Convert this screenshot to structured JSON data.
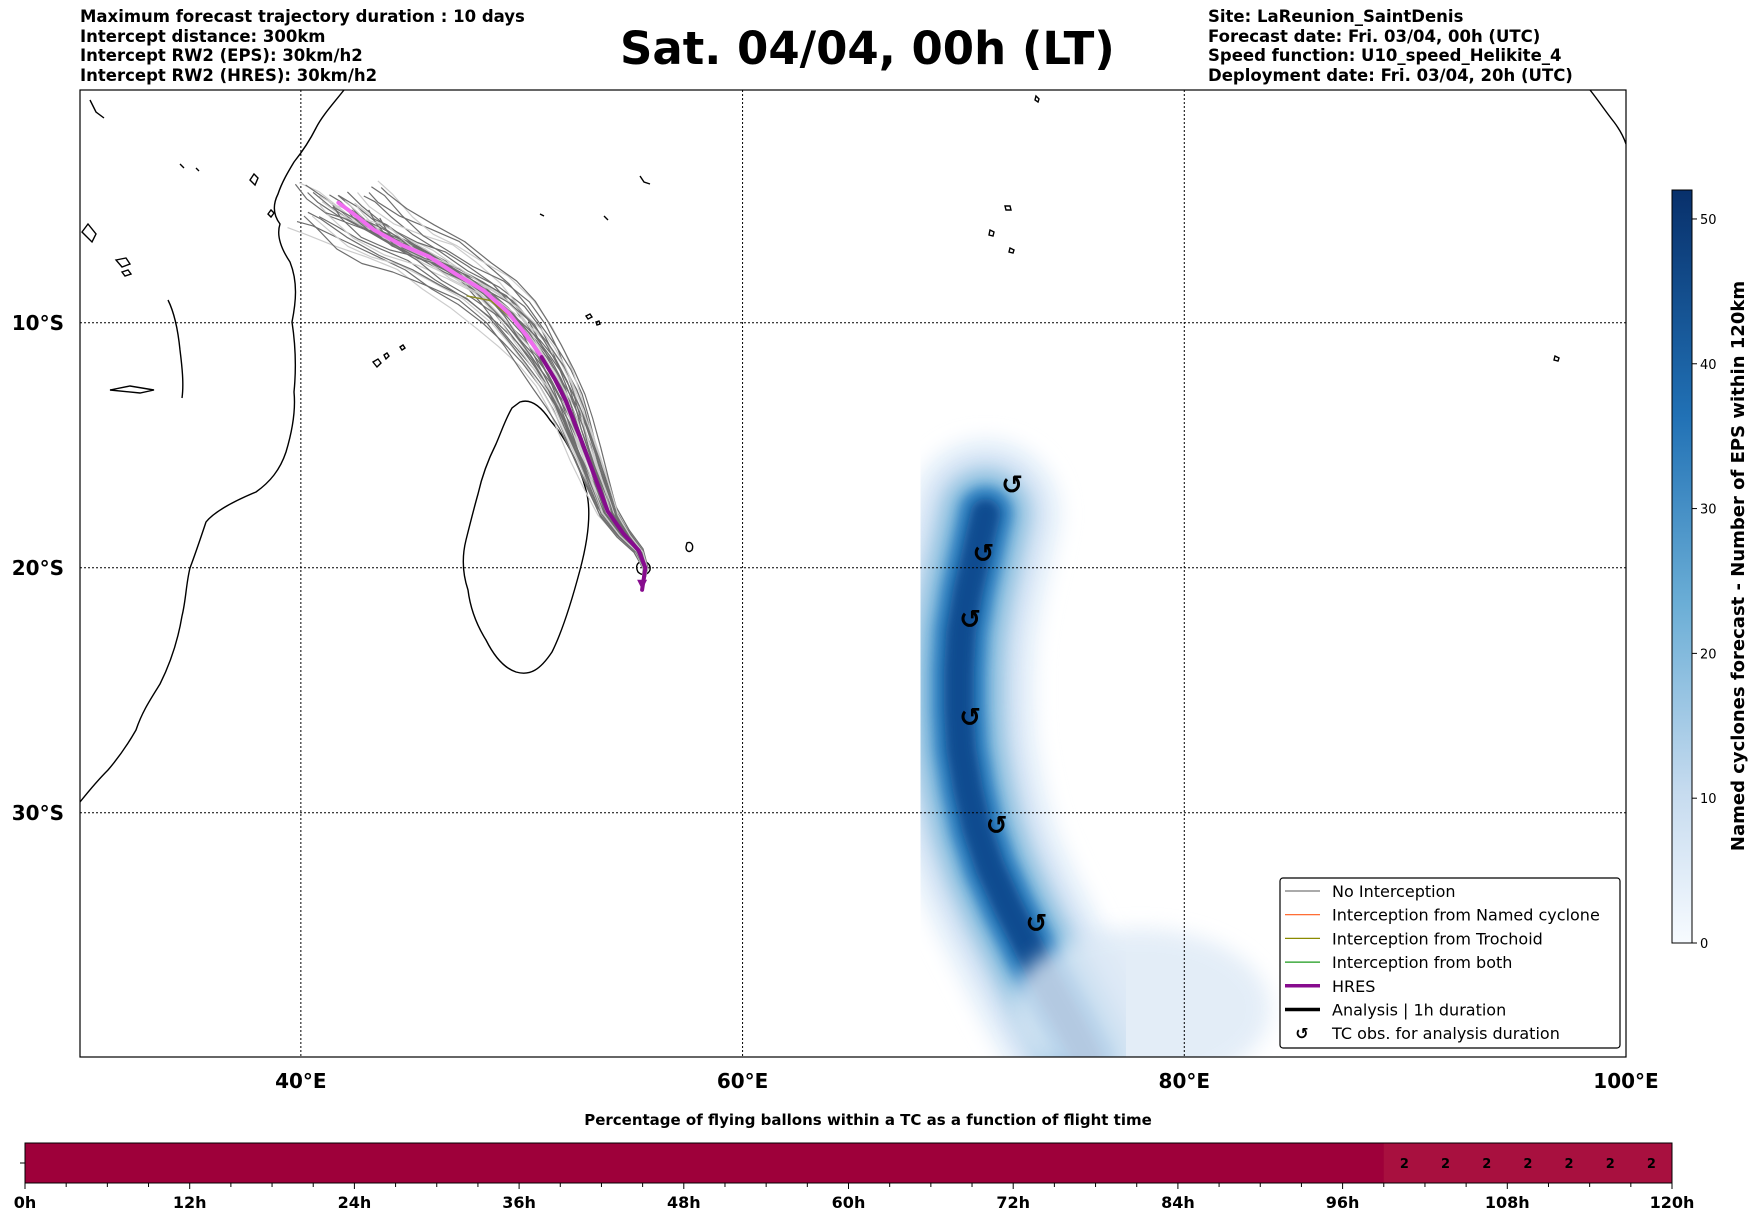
{
  "header": {
    "left_lines": [
      "Maximum forecast trajectory duration : 10 days",
      "Intercept distance: 300km",
      "Intercept RW2 (EPS):  30km/h2",
      "Intercept RW2 (HRES): 30km/h2"
    ],
    "right_lines": [
      "Site: LaReunion_SaintDenis",
      "Forecast date: Fri. 03/04, 00h (UTC)",
      "Speed function: U10_speed_Helikite_4",
      "Deployment date: Fri. 03/04, 20h (UTC)"
    ],
    "title": "Sat. 04/04, 00h (LT)"
  },
  "map": {
    "lon_labels": [
      "40°E",
      "60°E",
      "80°E",
      "100°E"
    ],
    "lat_labels": [
      "10°S",
      "20°S",
      "30°S"
    ],
    "lon_ticks": [
      40,
      60,
      80,
      100
    ],
    "lat_ticks": [
      10,
      20,
      30
    ],
    "extent": {
      "lon_min": 30,
      "lon_max": 100,
      "lat_top": 0.5,
      "lat_bottom": 40
    },
    "site": {
      "name": "LaReunion_SaintDenis",
      "lon": 55.45,
      "lat": -20.9
    },
    "hres_track": [
      [
        55.45,
        -20.9
      ],
      [
        55.6,
        -20.0
      ],
      [
        55.3,
        -19.3
      ],
      [
        54.6,
        -18.6
      ],
      [
        53.9,
        -17.7
      ],
      [
        53.4,
        -16.5
      ],
      [
        52.9,
        -15.3
      ],
      [
        52.4,
        -14.1
      ],
      [
        52.0,
        -13.2
      ],
      [
        51.5,
        -12.3
      ],
      [
        50.9,
        -11.4
      ],
      [
        50.2,
        -10.5
      ],
      [
        49.4,
        -9.6
      ],
      [
        48.3,
        -8.7
      ],
      [
        47.0,
        -8.0
      ],
      [
        45.8,
        -7.3
      ],
      [
        44.5,
        -6.8
      ],
      [
        43.3,
        -6.2
      ],
      [
        42.3,
        -5.5
      ],
      [
        41.7,
        -5.1
      ]
    ],
    "tc_obs": [
      [
        72.2,
        -16.6
      ],
      [
        70.9,
        -19.4
      ],
      [
        70.3,
        -22.1
      ],
      [
        70.3,
        -26.1
      ],
      [
        71.5,
        -30.5
      ],
      [
        73.3,
        -34.5
      ]
    ],
    "cyclone_track": [
      [
        71.0,
        -17.8
      ],
      [
        70.6,
        -19.4
      ],
      [
        70.2,
        -21.0
      ],
      [
        69.9,
        -22.6
      ],
      [
        69.8,
        -24.2
      ],
      [
        69.8,
        -25.8
      ],
      [
        69.9,
        -27.4
      ],
      [
        70.2,
        -29.0
      ],
      [
        70.6,
        -30.6
      ],
      [
        71.2,
        -32.2
      ],
      [
        72.0,
        -33.8
      ],
      [
        72.9,
        -35.4
      ],
      [
        73.8,
        -37.0
      ],
      [
        74.8,
        -38.6
      ],
      [
        75.6,
        -40.0
      ]
    ],
    "colors": {
      "hres": "#870c8e",
      "hres_light": "#f06ef0",
      "eps": "#6e6e6e",
      "eps_light": "#cccccc",
      "trochoid": "#8a8a20"
    }
  },
  "legend": {
    "items": [
      {
        "label": "No Interception",
        "color": "#777777",
        "width": 1.2,
        "kind": "line"
      },
      {
        "label": "Interception from Named cyclone",
        "color": "#ff5a1a",
        "width": 1.2,
        "kind": "line"
      },
      {
        "label": "Interception from Trochoid",
        "color": "#8a8a00",
        "width": 1.2,
        "kind": "line"
      },
      {
        "label": "Interception from both",
        "color": "#1a9a1a",
        "width": 1.2,
        "kind": "line"
      },
      {
        "label": "HRES",
        "color": "#870c8e",
        "width": 3.5,
        "kind": "line"
      },
      {
        "label": "Analysis | 1h duration",
        "color": "#000000",
        "width": 3.5,
        "kind": "line"
      },
      {
        "label": "TC obs. for analysis duration",
        "color": "#000000",
        "width": 0,
        "kind": "symbol",
        "symbol": "↺"
      }
    ]
  },
  "colorbar": {
    "label": "Named cyclones forecast - Number of EPS within 120km",
    "min": 0,
    "max": 52,
    "ticks": [
      0,
      10,
      20,
      30,
      40,
      50
    ],
    "tick_labels": [
      "0",
      "10",
      "20",
      "30",
      "40",
      "50"
    ],
    "colors": [
      "#f7fbff",
      "#c6dbef",
      "#6baed6",
      "#2171b5",
      "#08306b"
    ]
  },
  "timeline": {
    "title": "Percentage of flying ballons within a TC as a function of flight time",
    "tick_labels": [
      "0h",
      "12h",
      "24h",
      "36h",
      "48h",
      "60h",
      "72h",
      "84h",
      "96h",
      "108h",
      "120h"
    ],
    "max_hours": 120,
    "base_color": "#9e003a",
    "highlight_color": "#a8103f",
    "highlight_from_hours": 99,
    "cell_values": [
      "2",
      "2",
      "2",
      "2",
      "2",
      "2",
      "2"
    ]
  }
}
